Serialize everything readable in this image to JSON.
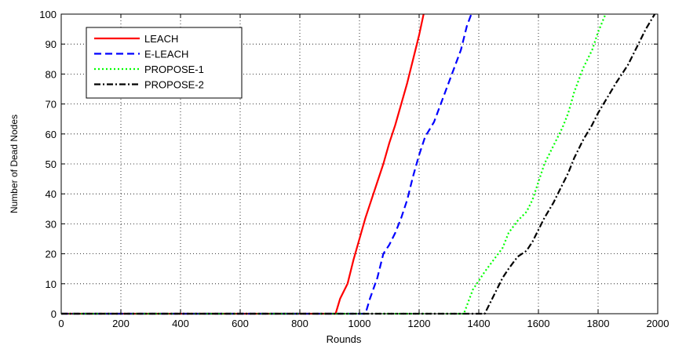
{
  "chart_data": {
    "type": "line",
    "title": "",
    "xlabel": "Rounds",
    "ylabel": "Number of Dead Nodes",
    "xlim": [
      0,
      2000
    ],
    "ylim": [
      0,
      100
    ],
    "xticks": [
      0,
      200,
      400,
      600,
      800,
      1000,
      1200,
      1400,
      1600,
      1800,
      2000
    ],
    "yticks": [
      0,
      10,
      20,
      30,
      40,
      50,
      60,
      70,
      80,
      90,
      100
    ],
    "grid": true,
    "legend_position": "top-left",
    "series": [
      {
        "name": "LEACH",
        "color": "#ff0000",
        "dash": "solid",
        "points": [
          [
            0,
            0
          ],
          [
            920,
            0
          ],
          [
            935,
            5
          ],
          [
            960,
            10
          ],
          [
            980,
            18
          ],
          [
            1000,
            25
          ],
          [
            1020,
            32
          ],
          [
            1040,
            38
          ],
          [
            1060,
            44
          ],
          [
            1080,
            50
          ],
          [
            1100,
            57
          ],
          [
            1120,
            63
          ],
          [
            1140,
            70
          ],
          [
            1160,
            77
          ],
          [
            1180,
            85
          ],
          [
            1200,
            93
          ],
          [
            1215,
            100
          ]
        ]
      },
      {
        "name": "E-LEACH",
        "color": "#0000ff",
        "dash": "dashed",
        "points": [
          [
            0,
            0
          ],
          [
            1020,
            0
          ],
          [
            1035,
            5
          ],
          [
            1060,
            12
          ],
          [
            1080,
            20
          ],
          [
            1100,
            23
          ],
          [
            1120,
            27
          ],
          [
            1140,
            32
          ],
          [
            1160,
            38
          ],
          [
            1180,
            46
          ],
          [
            1200,
            53
          ],
          [
            1220,
            59
          ],
          [
            1250,
            64
          ],
          [
            1280,
            72
          ],
          [
            1310,
            80
          ],
          [
            1340,
            88
          ],
          [
            1360,
            96
          ],
          [
            1375,
            100
          ]
        ]
      },
      {
        "name": "PROPOSE-1",
        "color": "#00ff00",
        "dash": "dotted",
        "points": [
          [
            0,
            0
          ],
          [
            1350,
            0
          ],
          [
            1365,
            4
          ],
          [
            1380,
            8
          ],
          [
            1400,
            11
          ],
          [
            1420,
            14
          ],
          [
            1450,
            18
          ],
          [
            1480,
            22
          ],
          [
            1500,
            27
          ],
          [
            1530,
            31
          ],
          [
            1560,
            34
          ],
          [
            1580,
            38
          ],
          [
            1600,
            44
          ],
          [
            1620,
            50
          ],
          [
            1650,
            56
          ],
          [
            1680,
            62
          ],
          [
            1700,
            67
          ],
          [
            1720,
            74
          ],
          [
            1750,
            82
          ],
          [
            1780,
            88
          ],
          [
            1800,
            94
          ],
          [
            1825,
            100
          ]
        ]
      },
      {
        "name": "PROPOSE-2",
        "color": "#000000",
        "dash": "dashdot",
        "points": [
          [
            0,
            0
          ],
          [
            1420,
            0
          ],
          [
            1440,
            4
          ],
          [
            1460,
            8
          ],
          [
            1480,
            12
          ],
          [
            1500,
            15
          ],
          [
            1530,
            19
          ],
          [
            1560,
            21
          ],
          [
            1580,
            24
          ],
          [
            1600,
            28
          ],
          [
            1620,
            32
          ],
          [
            1650,
            37
          ],
          [
            1680,
            43
          ],
          [
            1700,
            47
          ],
          [
            1720,
            52
          ],
          [
            1750,
            58
          ],
          [
            1780,
            63
          ],
          [
            1800,
            67
          ],
          [
            1830,
            72
          ],
          [
            1860,
            77
          ],
          [
            1900,
            83
          ],
          [
            1930,
            89
          ],
          [
            1960,
            95
          ],
          [
            1990,
            100
          ]
        ]
      }
    ]
  }
}
